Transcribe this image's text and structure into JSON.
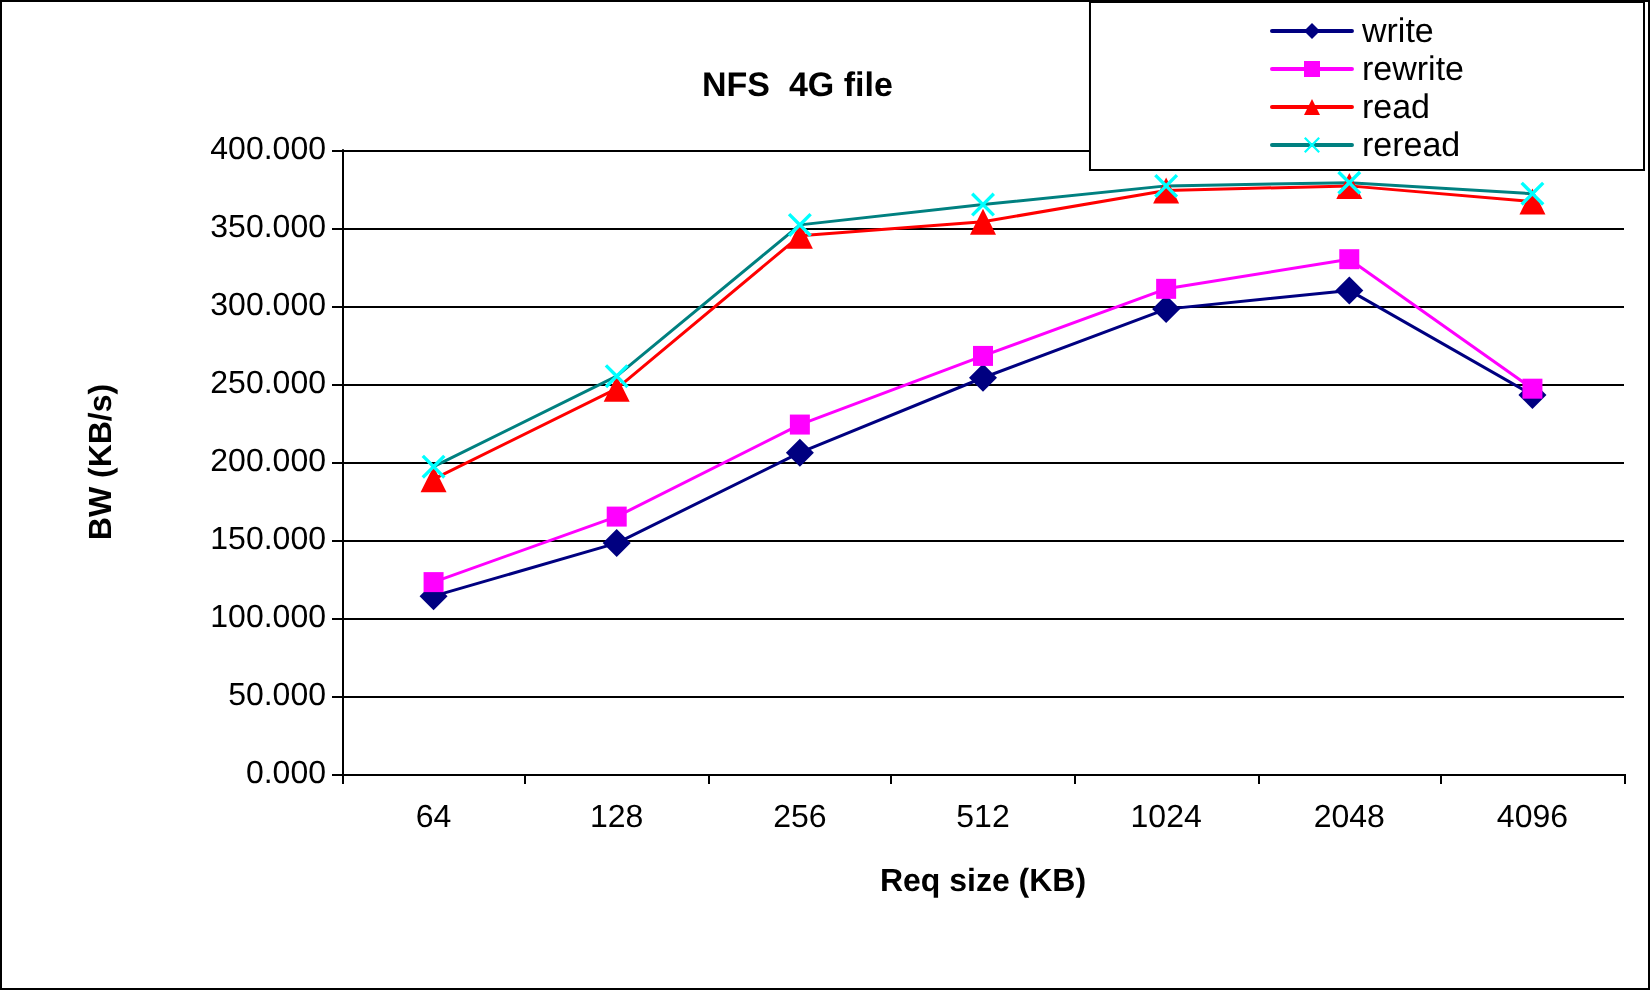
{
  "chart_data": {
    "type": "line",
    "title": "NFS  4G file",
    "xlabel": "Req size (KB)",
    "ylabel": "BW (KB/s)",
    "categories": [
      "64",
      "128",
      "256",
      "512",
      "1024",
      "2048",
      "4096"
    ],
    "series": [
      {
        "name": "write",
        "color": "#000080",
        "marker": "diamond",
        "values": [
          114,
          148,
          206,
          254,
          298,
          310,
          243
        ]
      },
      {
        "name": "rewrite",
        "color": "#ff00ff",
        "marker": "square",
        "values": [
          123,
          165,
          224,
          268,
          311,
          330,
          247
        ]
      },
      {
        "name": "read",
        "color": "#ff0000",
        "marker": "triangle",
        "values": [
          189,
          247,
          345,
          354,
          374,
          377,
          367
        ]
      },
      {
        "name": "reread",
        "color": "#008080",
        "marker": "cross",
        "values": [
          197,
          255,
          352,
          365,
          377,
          379,
          372
        ]
      }
    ],
    "ylim": [
      0,
      400
    ],
    "yticks": [
      {
        "value": 0,
        "label": "0.000"
      },
      {
        "value": 50,
        "label": "50.000"
      },
      {
        "value": 100,
        "label": "100.000"
      },
      {
        "value": 150,
        "label": "150.000"
      },
      {
        "value": 200,
        "label": "200.000"
      },
      {
        "value": 250,
        "label": "250.000"
      },
      {
        "value": 300,
        "label": "300.000"
      },
      {
        "value": 350,
        "label": "350.000"
      },
      {
        "value": 400,
        "label": "400.000"
      }
    ],
    "grid": "y",
    "legend": "top right",
    "line_style": "solid"
  }
}
